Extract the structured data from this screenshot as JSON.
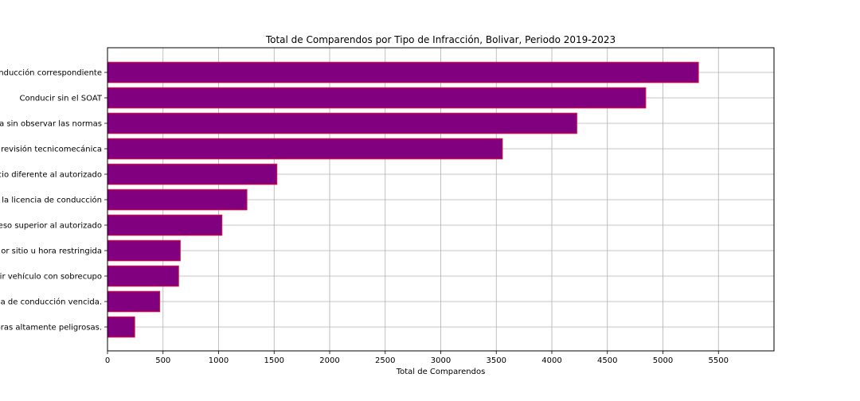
{
  "chart_data": {
    "type": "bar",
    "orientation": "horizontal",
    "title": "Total de Comparendos por Tipo de Infracción, Bolivar, Periodo 2019-2023",
    "xlabel": "Total de Comparendos",
    "ylabel": "",
    "xlim": [
      0,
      6000
    ],
    "xticks": [
      0,
      500,
      1000,
      1500,
      2000,
      2500,
      3000,
      3500,
      4000,
      4500,
      5000,
      5500
    ],
    "grid": true,
    "bar_color": "#800080",
    "bar_edge_color": "#dc143c",
    "categories": [
      "nducción correspondiente",
      "Conducir sin el SOAT",
      "a sin observar las normas",
      "revisión tecnicomecánica",
      "cio diferente al autorizado",
      "la licencia de conducción",
      "eso superior al autorizado",
      "or sitio u hora restringida",
      "ir vehículo con sobrecupo",
      "a de conducción vencida.",
      "oras altamente peligrosas."
    ],
    "values": [
      5320,
      4845,
      4225,
      3555,
      1525,
      1255,
      1030,
      655,
      640,
      470,
      245
    ]
  }
}
